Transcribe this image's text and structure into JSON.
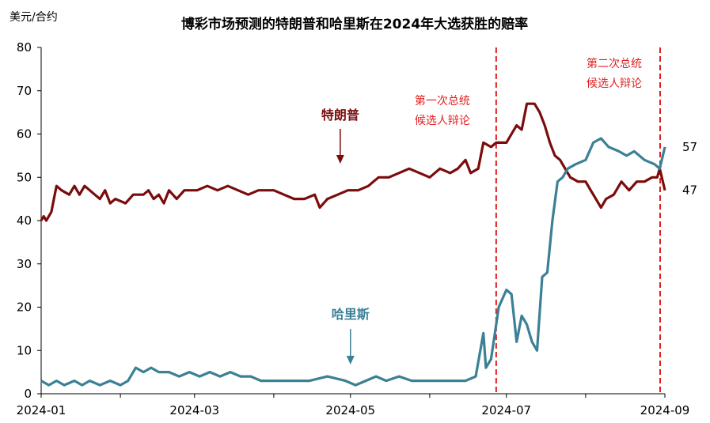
{
  "chart_data": {
    "type": "line",
    "title": "博彩市场预测的特朗普和哈里斯在2024年大选获胜的赔率",
    "unit_label": "美元/合约",
    "ylim": [
      0,
      80
    ],
    "yticks": [
      0,
      10,
      20,
      30,
      40,
      50,
      60,
      70,
      80
    ],
    "x_range": [
      "2024-01-01",
      "2024-09-01"
    ],
    "xticks": [
      "2024-01",
      "2024-03",
      "2024-05",
      "2024-07",
      "2024-09"
    ],
    "grid": false,
    "colors": {
      "trump": "#7B0C0C",
      "harris": "#3B8095",
      "event": "#E01F1F",
      "arrow": "#7B0C0C",
      "arrow_harris": "#3B8095"
    },
    "series": [
      {
        "name": "特朗普",
        "end_value_label": "47",
        "points": [
          [
            "2024-01-01",
            40
          ],
          [
            "2024-01-02",
            41
          ],
          [
            "2024-01-03",
            40
          ],
          [
            "2024-01-05",
            42
          ],
          [
            "2024-01-06",
            45
          ],
          [
            "2024-01-07",
            48
          ],
          [
            "2024-01-09",
            47
          ],
          [
            "2024-01-12",
            46
          ],
          [
            "2024-01-14",
            48
          ],
          [
            "2024-01-16",
            46
          ],
          [
            "2024-01-18",
            48
          ],
          [
            "2024-01-20",
            47
          ],
          [
            "2024-01-22",
            46
          ],
          [
            "2024-01-24",
            45
          ],
          [
            "2024-01-26",
            47
          ],
          [
            "2024-01-28",
            44
          ],
          [
            "2024-01-30",
            45
          ],
          [
            "2024-02-03",
            44
          ],
          [
            "2024-02-06",
            46
          ],
          [
            "2024-02-10",
            46
          ],
          [
            "2024-02-12",
            47
          ],
          [
            "2024-02-14",
            45
          ],
          [
            "2024-02-16",
            46
          ],
          [
            "2024-02-18",
            44
          ],
          [
            "2024-02-20",
            47
          ],
          [
            "2024-02-23",
            45
          ],
          [
            "2024-02-26",
            47
          ],
          [
            "2024-03-02",
            47
          ],
          [
            "2024-03-06",
            48
          ],
          [
            "2024-03-10",
            47
          ],
          [
            "2024-03-14",
            48
          ],
          [
            "2024-03-18",
            47
          ],
          [
            "2024-03-22",
            46
          ],
          [
            "2024-03-26",
            47
          ],
          [
            "2024-04-01",
            47
          ],
          [
            "2024-04-05",
            46
          ],
          [
            "2024-04-09",
            45
          ],
          [
            "2024-04-13",
            45
          ],
          [
            "2024-04-17",
            46
          ],
          [
            "2024-04-19",
            43
          ],
          [
            "2024-04-22",
            45
          ],
          [
            "2024-04-26",
            46
          ],
          [
            "2024-04-30",
            47
          ],
          [
            "2024-05-04",
            47
          ],
          [
            "2024-05-08",
            48
          ],
          [
            "2024-05-10",
            49
          ],
          [
            "2024-05-12",
            50
          ],
          [
            "2024-05-16",
            50
          ],
          [
            "2024-05-20",
            51
          ],
          [
            "2024-05-24",
            52
          ],
          [
            "2024-05-28",
            51
          ],
          [
            "2024-06-01",
            50
          ],
          [
            "2024-06-05",
            52
          ],
          [
            "2024-06-09",
            51
          ],
          [
            "2024-06-12",
            52
          ],
          [
            "2024-06-15",
            54
          ],
          [
            "2024-06-17",
            51
          ],
          [
            "2024-06-20",
            52
          ],
          [
            "2024-06-22",
            58
          ],
          [
            "2024-06-25",
            57
          ],
          [
            "2024-06-27",
            58
          ],
          [
            "2024-07-01",
            58
          ],
          [
            "2024-07-03",
            60
          ],
          [
            "2024-07-05",
            62
          ],
          [
            "2024-07-07",
            61
          ],
          [
            "2024-07-09",
            67
          ],
          [
            "2024-07-12",
            67
          ],
          [
            "2024-07-14",
            65
          ],
          [
            "2024-07-16",
            62
          ],
          [
            "2024-07-18",
            58
          ],
          [
            "2024-07-20",
            55
          ],
          [
            "2024-07-22",
            54
          ],
          [
            "2024-07-24",
            52
          ],
          [
            "2024-07-26",
            50
          ],
          [
            "2024-07-29",
            49
          ],
          [
            "2024-08-01",
            49
          ],
          [
            "2024-08-03",
            47
          ],
          [
            "2024-08-05",
            45
          ],
          [
            "2024-08-07",
            43
          ],
          [
            "2024-08-09",
            45
          ],
          [
            "2024-08-12",
            46
          ],
          [
            "2024-08-15",
            49
          ],
          [
            "2024-08-18",
            47
          ],
          [
            "2024-08-21",
            49
          ],
          [
            "2024-08-24",
            49
          ],
          [
            "2024-08-27",
            50
          ],
          [
            "2024-08-29",
            50
          ],
          [
            "2024-08-30",
            52
          ],
          [
            "2024-09-01",
            47
          ]
        ]
      },
      {
        "name": "哈里斯",
        "end_value_label": "57",
        "points": [
          [
            "2024-01-01",
            3
          ],
          [
            "2024-01-04",
            2
          ],
          [
            "2024-01-07",
            3
          ],
          [
            "2024-01-10",
            2
          ],
          [
            "2024-01-14",
            3
          ],
          [
            "2024-01-17",
            2
          ],
          [
            "2024-01-20",
            3
          ],
          [
            "2024-01-24",
            2
          ],
          [
            "2024-01-28",
            3
          ],
          [
            "2024-02-01",
            2
          ],
          [
            "2024-02-04",
            3
          ],
          [
            "2024-02-07",
            6
          ],
          [
            "2024-02-10",
            5
          ],
          [
            "2024-02-13",
            6
          ],
          [
            "2024-02-16",
            5
          ],
          [
            "2024-02-20",
            5
          ],
          [
            "2024-02-24",
            4
          ],
          [
            "2024-02-28",
            5
          ],
          [
            "2024-03-03",
            4
          ],
          [
            "2024-03-07",
            5
          ],
          [
            "2024-03-11",
            4
          ],
          [
            "2024-03-15",
            5
          ],
          [
            "2024-03-19",
            4
          ],
          [
            "2024-03-23",
            4
          ],
          [
            "2024-03-27",
            3
          ],
          [
            "2024-04-01",
            3
          ],
          [
            "2024-04-08",
            3
          ],
          [
            "2024-04-15",
            3
          ],
          [
            "2024-04-22",
            4
          ],
          [
            "2024-04-29",
            3
          ],
          [
            "2024-05-03",
            2
          ],
          [
            "2024-05-07",
            3
          ],
          [
            "2024-05-11",
            4
          ],
          [
            "2024-05-15",
            3
          ],
          [
            "2024-05-20",
            4
          ],
          [
            "2024-05-25",
            3
          ],
          [
            "2024-06-01",
            3
          ],
          [
            "2024-06-08",
            3
          ],
          [
            "2024-06-15",
            3
          ],
          [
            "2024-06-19",
            4
          ],
          [
            "2024-06-22",
            14
          ],
          [
            "2024-06-23",
            6
          ],
          [
            "2024-06-25",
            8
          ],
          [
            "2024-06-28",
            20
          ],
          [
            "2024-07-01",
            24
          ],
          [
            "2024-07-03",
            23
          ],
          [
            "2024-07-05",
            12
          ],
          [
            "2024-07-07",
            18
          ],
          [
            "2024-07-09",
            16
          ],
          [
            "2024-07-11",
            12
          ],
          [
            "2024-07-13",
            10
          ],
          [
            "2024-07-15",
            27
          ],
          [
            "2024-07-17",
            28
          ],
          [
            "2024-07-19",
            40
          ],
          [
            "2024-07-21",
            49
          ],
          [
            "2024-07-23",
            50
          ],
          [
            "2024-07-25",
            52
          ],
          [
            "2024-07-28",
            53
          ],
          [
            "2024-08-01",
            54
          ],
          [
            "2024-08-04",
            58
          ],
          [
            "2024-08-07",
            59
          ],
          [
            "2024-08-10",
            57
          ],
          [
            "2024-08-14",
            56
          ],
          [
            "2024-08-17",
            55
          ],
          [
            "2024-08-20",
            56
          ],
          [
            "2024-08-24",
            54
          ],
          [
            "2024-08-28",
            53
          ],
          [
            "2024-08-30",
            52
          ],
          [
            "2024-09-01",
            57
          ]
        ]
      }
    ],
    "events": [
      {
        "date": "2024-06-27",
        "label_line1": "第一次总统",
        "label_line2": "候选人辩论"
      },
      {
        "date": "2024-09-01",
        "label_line1": "第二次总统",
        "label_line2": "候选人辩论"
      }
    ]
  }
}
